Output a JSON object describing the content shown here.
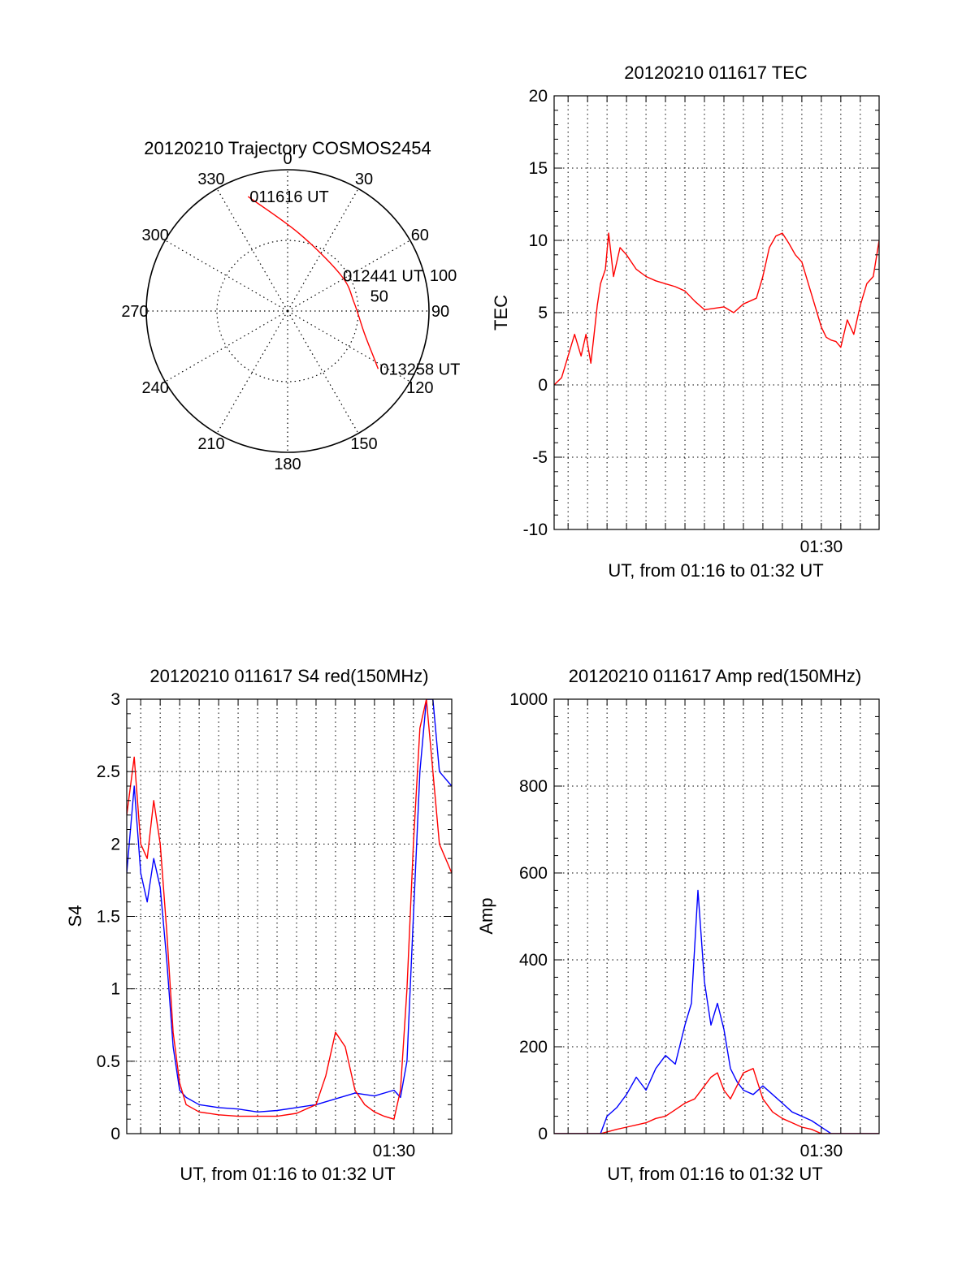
{
  "colors": {
    "red": "#ff0000",
    "blue": "#0000ff",
    "axis": "#000000",
    "grid": "#000000"
  },
  "chart_data": [
    {
      "id": "trajectory",
      "type": "polar",
      "title": "20120210 Trajectory COSMOS2454",
      "azimuth_labels": [
        "0",
        "30",
        "60",
        "90",
        "120",
        "150",
        "180",
        "210",
        "240",
        "270",
        "300",
        "330"
      ],
      "elevation_labels": [
        "50",
        "100"
      ],
      "rlim": [
        0,
        100
      ],
      "grid": true,
      "series": [
        {
          "color": "#ff0000",
          "points": [
            [
              -28,
              81
            ],
            [
              8,
              55
            ],
            [
              38,
              25
            ],
            [
              47,
              6
            ],
            [
              54,
              -15
            ],
            [
              61,
              -33
            ],
            [
              64,
              -41
            ]
          ]
        }
      ],
      "annotations": [
        {
          "text": "011616 UT",
          "at": [
            -28,
            81
          ]
        },
        {
          "text": "012441 UT",
          "at": [
            38,
            25
          ]
        },
        {
          "text": "013258 UT",
          "at": [
            64,
            -41
          ]
        }
      ]
    },
    {
      "id": "tec",
      "type": "line",
      "title": "20120210 011617 TEC",
      "xlabel": "UT, from 01:16 to 01:32 UT",
      "ylabel": "TEC",
      "xlim": [
        "01:16:17",
        "01:32:58"
      ],
      "ylim": [
        -10,
        20
      ],
      "yticks": [
        "-10",
        "-5",
        "0",
        "5",
        "10",
        "15",
        "20"
      ],
      "xtick_labels": [
        "01:30"
      ],
      "grid": true,
      "series": [
        {
          "color": "#ff0000",
          "x": [
            "01:16:17",
            "01:16:40",
            "01:17:00",
            "01:17:20",
            "01:17:40",
            "01:17:55",
            "01:18:10",
            "01:18:20",
            "01:18:30",
            "01:18:40",
            "01:18:55",
            "01:19:05",
            "01:19:20",
            "01:19:40",
            "01:20:00",
            "01:20:30",
            "01:21:00",
            "01:21:30",
            "01:22:00",
            "01:22:30",
            "01:23:00",
            "01:23:30",
            "01:24:00",
            "01:24:30",
            "01:25:00",
            "01:25:30",
            "01:26:00",
            "01:26:20",
            "01:26:40",
            "01:27:00",
            "01:27:20",
            "01:27:40",
            "01:28:00",
            "01:28:20",
            "01:28:40",
            "01:29:00",
            "01:29:20",
            "01:29:40",
            "01:30:00",
            "01:30:15",
            "01:30:30",
            "01:30:45",
            "01:31:00",
            "01:31:20",
            "01:31:40",
            "01:32:00",
            "01:32:20",
            "01:32:40",
            "01:32:58"
          ],
          "y": [
            0.0,
            0.5,
            2.0,
            3.5,
            2.0,
            3.5,
            1.5,
            3.5,
            5.5,
            7.0,
            8.0,
            10.5,
            7.5,
            9.5,
            9.0,
            8.0,
            7.5,
            7.2,
            7.0,
            6.8,
            6.5,
            5.8,
            5.2,
            5.3,
            5.4,
            5.0,
            5.6,
            5.8,
            6.0,
            7.5,
            9.5,
            10.3,
            10.5,
            9.8,
            9.0,
            8.5,
            7.0,
            5.5,
            4.0,
            3.3,
            3.1,
            3.0,
            2.6,
            4.5,
            3.5,
            5.5,
            7.0,
            7.5,
            10.0
          ]
        }
      ]
    },
    {
      "id": "s4",
      "type": "line",
      "title": "20120210 011617 S4 red(150MHz)",
      "xlabel": "UT, from 01:16 to 01:32 UT",
      "ylabel": "S4",
      "xlim": [
        "01:16:17",
        "01:32:58"
      ],
      "ylim": [
        0,
        3
      ],
      "yticks": [
        "0",
        "0.5",
        "1",
        "1.5",
        "2",
        "2.5",
        "3"
      ],
      "xtick_labels": [
        "01:30"
      ],
      "grid": true,
      "series": [
        {
          "color": "#0000ff",
          "x": [
            "01:16:17",
            "01:16:40",
            "01:17:00",
            "01:17:20",
            "01:17:40",
            "01:18:00",
            "01:18:20",
            "01:18:40",
            "01:19:00",
            "01:19:20",
            "01:20:00",
            "01:21:00",
            "01:22:00",
            "01:23:00",
            "01:24:00",
            "01:25:00",
            "01:26:00",
            "01:27:00",
            "01:28:00",
            "01:29:00",
            "01:30:00",
            "01:30:20",
            "01:30:40",
            "01:31:00",
            "01:31:20",
            "01:31:40",
            "01:32:00",
            "01:32:20",
            "01:32:58"
          ],
          "y": [
            1.8,
            2.4,
            1.8,
            1.6,
            1.9,
            1.7,
            1.2,
            0.6,
            0.3,
            0.25,
            0.2,
            0.18,
            0.17,
            0.15,
            0.16,
            0.18,
            0.2,
            0.24,
            0.28,
            0.26,
            0.3,
            0.25,
            0.5,
            1.5,
            2.5,
            3.0,
            3.0,
            2.5,
            2.4
          ]
        },
        {
          "color": "#ff0000",
          "x": [
            "01:16:17",
            "01:16:40",
            "01:17:00",
            "01:17:20",
            "01:17:40",
            "01:18:00",
            "01:18:20",
            "01:18:40",
            "01:19:00",
            "01:19:20",
            "01:20:00",
            "01:21:00",
            "01:22:00",
            "01:23:00",
            "01:24:00",
            "01:25:00",
            "01:26:00",
            "01:26:30",
            "01:27:00",
            "01:27:30",
            "01:28:00",
            "01:28:30",
            "01:29:00",
            "01:29:30",
            "01:30:00",
            "01:30:20",
            "01:30:40",
            "01:31:00",
            "01:31:20",
            "01:31:40",
            "01:32:00",
            "01:32:20",
            "01:32:58"
          ],
          "y": [
            2.2,
            2.6,
            2.0,
            1.9,
            2.3,
            2.0,
            1.4,
            0.7,
            0.35,
            0.2,
            0.15,
            0.13,
            0.12,
            0.12,
            0.12,
            0.14,
            0.2,
            0.4,
            0.7,
            0.6,
            0.3,
            0.2,
            0.15,
            0.12,
            0.1,
            0.3,
            1.0,
            2.0,
            2.8,
            3.0,
            2.5,
            2.0,
            1.8
          ]
        }
      ]
    },
    {
      "id": "amp",
      "type": "line",
      "title": "20120210 011617 Amp red(150MHz)",
      "xlabel": "UT, from 01:16 to 01:32 UT",
      "ylabel": "Amp",
      "xlim": [
        "01:16:17",
        "01:32:58"
      ],
      "ylim": [
        0,
        1000
      ],
      "yticks": [
        "0",
        "200",
        "400",
        "600",
        "800",
        "1000"
      ],
      "xtick_labels": [
        "01:30"
      ],
      "grid": true,
      "series": [
        {
          "color": "#0000ff",
          "x": [
            "01:16:17",
            "01:18:00",
            "01:18:40",
            "01:19:00",
            "01:19:30",
            "01:20:00",
            "01:20:30",
            "01:21:00",
            "01:21:30",
            "01:22:00",
            "01:22:30",
            "01:23:00",
            "01:23:20",
            "01:23:40",
            "01:24:00",
            "01:24:20",
            "01:24:40",
            "01:25:00",
            "01:25:20",
            "01:25:40",
            "01:26:00",
            "01:26:30",
            "01:27:00",
            "01:27:30",
            "01:28:00",
            "01:28:30",
            "01:29:00",
            "01:29:30",
            "01:30:00",
            "01:30:30",
            "01:31:00",
            "01:32:58"
          ],
          "y": [
            0,
            0,
            0,
            40,
            60,
            90,
            130,
            100,
            150,
            180,
            160,
            250,
            300,
            560,
            350,
            250,
            300,
            240,
            150,
            120,
            100,
            90,
            110,
            90,
            70,
            50,
            40,
            30,
            15,
            0,
            0,
            0
          ]
        },
        {
          "color": "#ff0000",
          "x": [
            "01:16:17",
            "01:18:40",
            "01:19:30",
            "01:20:00",
            "01:20:30",
            "01:21:00",
            "01:21:30",
            "01:22:00",
            "01:22:30",
            "01:23:00",
            "01:23:30",
            "01:24:00",
            "01:24:20",
            "01:24:40",
            "01:25:00",
            "01:25:20",
            "01:25:40",
            "01:26:00",
            "01:26:30",
            "01:27:00",
            "01:27:30",
            "01:28:00",
            "01:28:30",
            "01:29:00",
            "01:29:30",
            "01:30:00",
            "01:32:58"
          ],
          "y": [
            0,
            0,
            10,
            15,
            20,
            25,
            35,
            40,
            55,
            70,
            80,
            110,
            130,
            140,
            100,
            80,
            110,
            140,
            150,
            80,
            50,
            35,
            25,
            15,
            10,
            0,
            0
          ]
        }
      ]
    }
  ]
}
